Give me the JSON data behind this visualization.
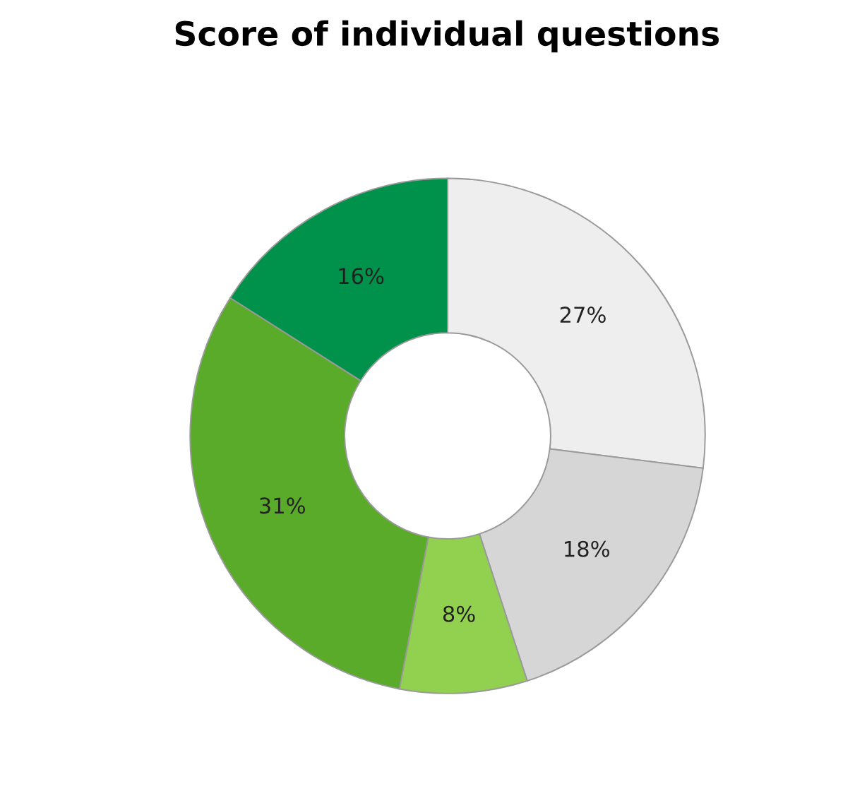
{
  "chart_data": {
    "type": "donut",
    "title": "Score of individual questions",
    "categories": [
      null,
      null,
      null,
      null,
      null
    ],
    "values": [
      27,
      18,
      8,
      31,
      16
    ],
    "colors": [
      "#eeeeee",
      "#d6d6d6",
      "#92d050",
      "#5aab2a",
      "#00924a"
    ],
    "value_labels": [
      "27%",
      "18%",
      "8%",
      "31%",
      "16%"
    ],
    "legend": false
  }
}
